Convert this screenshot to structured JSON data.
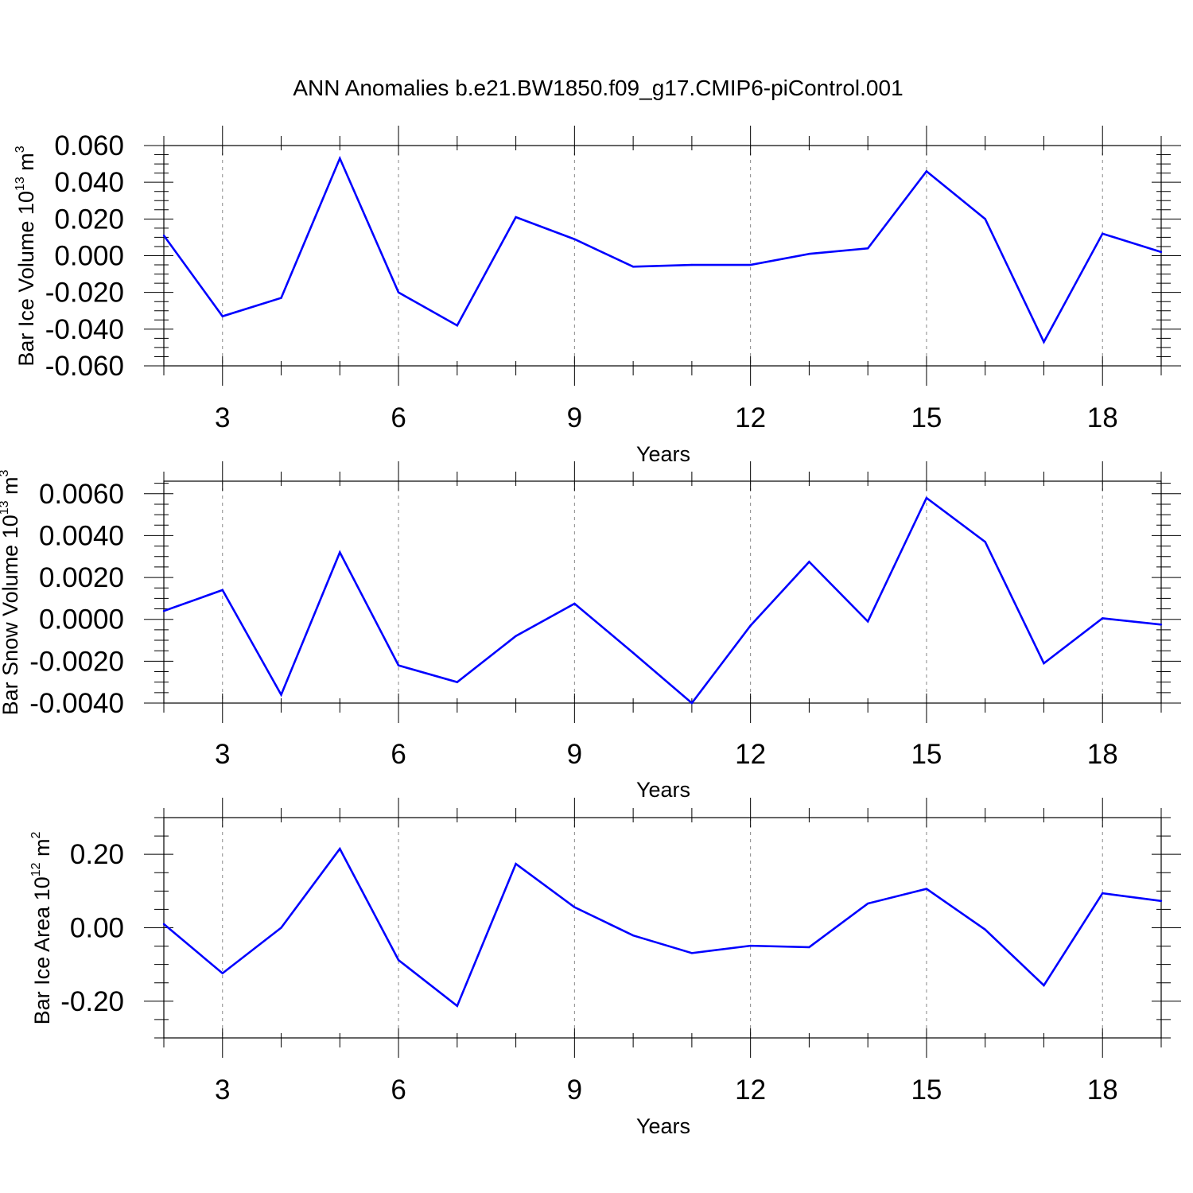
{
  "title": "ANN Anomalies b.e21.BW1850.f09_g17.CMIP6-piControl.001",
  "colors": {
    "line": "#0000ff",
    "axis": "#000000",
    "grid": "#888888"
  },
  "chart_data": [
    {
      "type": "line",
      "xlabel": "Years",
      "ylabel_prefix": "Bar Ice Volume 10",
      "ylabel_exp": "13",
      "ylabel_unit": " m",
      "ylabel_unit_exp": "3",
      "xlim": [
        2,
        19
      ],
      "ylim": [
        -0.06,
        0.06
      ],
      "x_ticks": [
        3,
        6,
        9,
        12,
        15,
        18
      ],
      "x_tick_labels": [
        "3",
        "6",
        "9",
        "12",
        "15",
        "18"
      ],
      "y_ticks": [
        -0.06,
        -0.04,
        -0.02,
        0.0,
        0.02,
        0.04,
        0.06
      ],
      "y_tick_labels": [
        "-0.060",
        "-0.040",
        "-0.020",
        "0.000",
        "0.020",
        "0.040",
        "0.060"
      ],
      "grid": "vertical dashed at x ticks",
      "series": [
        {
          "x": [
            2,
            3,
            4,
            5,
            6,
            7,
            8,
            9,
            10,
            11,
            12,
            13,
            14,
            15,
            16,
            17,
            18,
            19
          ],
          "values": [
            0.011,
            -0.033,
            -0.023,
            0.053,
            -0.02,
            -0.038,
            0.021,
            0.009,
            -0.006,
            -0.005,
            -0.005,
            0.001,
            0.004,
            0.046,
            0.02,
            -0.047,
            0.012,
            0.002
          ]
        }
      ]
    },
    {
      "type": "line",
      "xlabel": "Years",
      "ylabel_prefix": "Bar Snow Volume 10",
      "ylabel_exp": "13",
      "ylabel_unit": " m",
      "ylabel_unit_exp": "3",
      "xlim": [
        2,
        19
      ],
      "ylim": [
        -0.004,
        0.0066
      ],
      "x_ticks": [
        3,
        6,
        9,
        12,
        15,
        18
      ],
      "x_tick_labels": [
        "3",
        "6",
        "9",
        "12",
        "15",
        "18"
      ],
      "y_ticks": [
        -0.004,
        -0.002,
        0.0,
        0.002,
        0.004,
        0.006
      ],
      "y_tick_labels": [
        "-0.0040",
        "-0.0020",
        "0.0000",
        "0.0020",
        "0.0040",
        "0.0060"
      ],
      "grid": "vertical dashed at x ticks",
      "series": [
        {
          "x": [
            2,
            3,
            4,
            5,
            6,
            7,
            8,
            9,
            10,
            11,
            12,
            13,
            14,
            15,
            16,
            17,
            18,
            19
          ],
          "values": [
            0.0004,
            0.0014,
            -0.0036,
            0.0032,
            -0.0022,
            -0.003,
            -0.0008,
            0.00075,
            -0.0016,
            -0.004,
            -0.0003,
            0.00275,
            -0.0001,
            0.0058,
            0.0037,
            -0.0021,
            5e-05,
            -0.00025
          ]
        }
      ]
    },
    {
      "type": "line",
      "xlabel": "Years",
      "ylabel_prefix": "Bar Ice Area 10",
      "ylabel_exp": "12",
      "ylabel_unit": " m",
      "ylabel_unit_exp": "2",
      "xlim": [
        2,
        19
      ],
      "ylim": [
        -0.3,
        0.3
      ],
      "x_ticks": [
        3,
        6,
        9,
        12,
        15,
        18
      ],
      "x_tick_labels": [
        "3",
        "6",
        "9",
        "12",
        "15",
        "18"
      ],
      "y_ticks": [
        -0.2,
        0.0,
        0.2
      ],
      "y_tick_labels": [
        "-0.20",
        "0.00",
        "0.20"
      ],
      "grid": "vertical dashed at x ticks",
      "series": [
        {
          "x": [
            2,
            3,
            4,
            5,
            6,
            7,
            8,
            9,
            10,
            11,
            12,
            13,
            14,
            15,
            16,
            17,
            18,
            19
          ],
          "values": [
            0.01,
            -0.124,
            0.0,
            0.215,
            -0.088,
            -0.213,
            0.174,
            0.056,
            -0.021,
            -0.069,
            -0.049,
            -0.053,
            0.066,
            0.106,
            -0.005,
            -0.157,
            0.094,
            0.073
          ]
        }
      ]
    }
  ]
}
